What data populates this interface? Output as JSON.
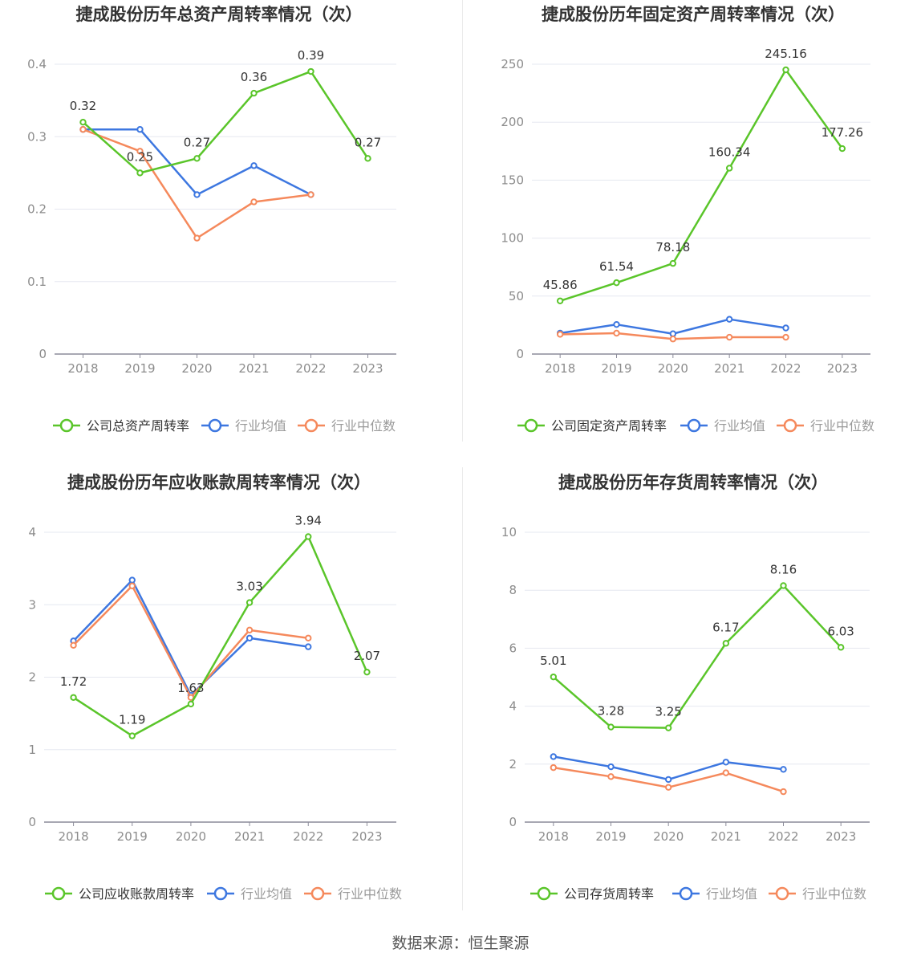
{
  "source": "数据来源：恒生聚源",
  "chart_data": [
    {
      "type": "line",
      "title": "捷成股份历年总资产周转率情况（次）",
      "categories": [
        "2018",
        "2019",
        "2020",
        "2021",
        "2022",
        "2023"
      ],
      "y_ticks": [
        "0",
        "0.1",
        "0.2",
        "0.3",
        "0.4"
      ],
      "ylim": [
        0,
        0.4
      ],
      "grid": true,
      "legend_position": "bottom",
      "series": [
        {
          "name": "公司总资产周转率",
          "color": "#5ac52a",
          "labels": true,
          "values": [
            0.32,
            0.25,
            0.27,
            0.36,
            0.39,
            0.27
          ],
          "label_text": [
            "0.32",
            "0.25",
            "0.27",
            "0.36",
            "0.39",
            "0.27"
          ]
        },
        {
          "name": "行业均值",
          "color": "#3d77e0",
          "labels": false,
          "values": [
            0.31,
            0.31,
            0.22,
            0.26,
            0.22,
            null
          ]
        },
        {
          "name": "行业中位数",
          "color": "#f5895c",
          "labels": false,
          "values": [
            0.31,
            0.28,
            0.16,
            0.21,
            0.22,
            null
          ]
        }
      ]
    },
    {
      "type": "line",
      "title": "捷成股份历年固定资产周转率情况（次）",
      "categories": [
        "2018",
        "2019",
        "2020",
        "2021",
        "2022",
        "2023"
      ],
      "y_ticks": [
        "0",
        "50",
        "100",
        "150",
        "200",
        "250"
      ],
      "ylim": [
        0,
        250
      ],
      "grid": true,
      "legend_position": "bottom",
      "series": [
        {
          "name": "公司固定资产周转率",
          "color": "#5ac52a",
          "labels": true,
          "values": [
            45.86,
            61.54,
            78.18,
            160.34,
            245.16,
            177.26
          ],
          "label_text": [
            "45.86",
            "61.54",
            "78.18",
            "160.34",
            "245.16",
            "177.26"
          ]
        },
        {
          "name": "行业均值",
          "color": "#3d77e0",
          "labels": false,
          "values": [
            18,
            25.5,
            17.5,
            30,
            22.5,
            null
          ]
        },
        {
          "name": "行业中位数",
          "color": "#f5895c",
          "labels": false,
          "values": [
            17,
            18,
            13,
            14.5,
            14.5,
            null
          ]
        }
      ]
    },
    {
      "type": "line",
      "title": "捷成股份历年应收账款周转率情况（次）",
      "categories": [
        "2018",
        "2019",
        "2020",
        "2021",
        "2022",
        "2023"
      ],
      "y_ticks": [
        "0",
        "1",
        "2",
        "3",
        "4"
      ],
      "ylim": [
        0,
        4
      ],
      "grid": true,
      "legend_position": "bottom",
      "series": [
        {
          "name": "公司应收账款周转率",
          "color": "#5ac52a",
          "labels": true,
          "values": [
            1.72,
            1.19,
            1.63,
            3.03,
            3.94,
            2.07
          ],
          "label_text": [
            "1.72",
            "1.19",
            "1.63",
            "3.03",
            "3.94",
            "2.07"
          ]
        },
        {
          "name": "行业均值",
          "color": "#3d77e0",
          "labels": false,
          "values": [
            2.5,
            3.34,
            1.75,
            2.54,
            2.42,
            null
          ]
        },
        {
          "name": "行业中位数",
          "color": "#f5895c",
          "labels": false,
          "values": [
            2.44,
            3.26,
            1.72,
            2.65,
            2.54,
            null
          ]
        }
      ]
    },
    {
      "type": "line",
      "title": "捷成股份历年存货周转率情况（次）",
      "categories": [
        "2018",
        "2019",
        "2020",
        "2021",
        "2022",
        "2023"
      ],
      "y_ticks": [
        "0",
        "2",
        "4",
        "6",
        "8",
        "10"
      ],
      "ylim": [
        0,
        10
      ],
      "grid": true,
      "legend_position": "bottom",
      "series": [
        {
          "name": "公司存货周转率",
          "color": "#5ac52a",
          "labels": true,
          "values": [
            5.01,
            3.28,
            3.25,
            6.17,
            8.16,
            6.03
          ],
          "label_text": [
            "5.01",
            "3.28",
            "3.25",
            "6.17",
            "8.16",
            "6.03"
          ]
        },
        {
          "name": "行业均值",
          "color": "#3d77e0",
          "labels": false,
          "values": [
            2.26,
            1.91,
            1.47,
            2.07,
            1.82,
            null
          ]
        },
        {
          "name": "行业中位数",
          "color": "#f5895c",
          "labels": false,
          "values": [
            1.88,
            1.57,
            1.2,
            1.7,
            1.05,
            null
          ]
        }
      ]
    }
  ]
}
